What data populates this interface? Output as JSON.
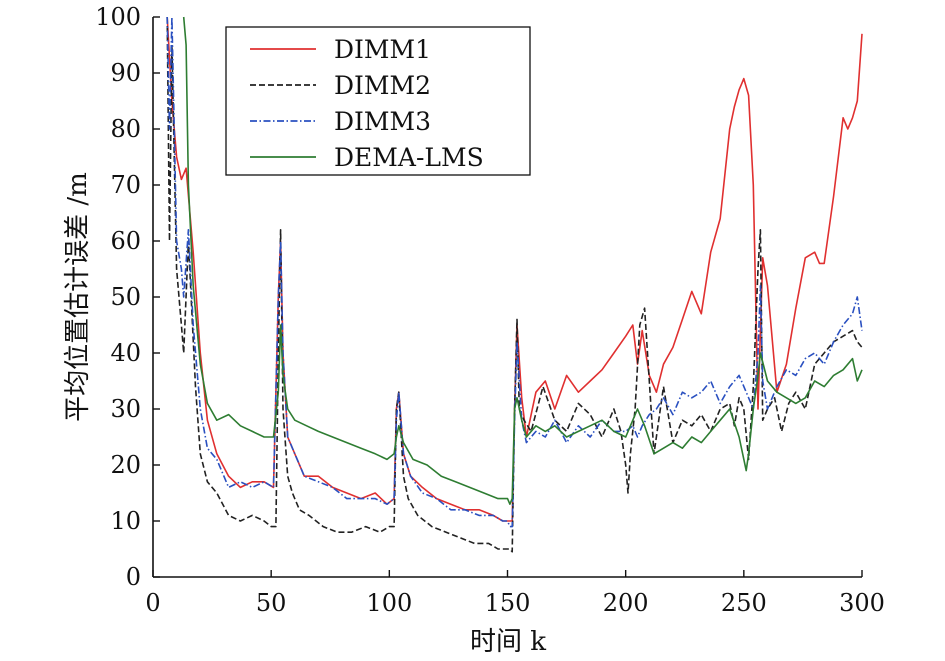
{
  "chart_data": {
    "type": "line",
    "xlabel": "时间 k",
    "ylabel": "平均位置估计误差 /m",
    "xlim": [
      0,
      300
    ],
    "ylim": [
      0,
      100
    ],
    "xticks": [
      "0",
      "50",
      "100",
      "150",
      "200",
      "250",
      "300"
    ],
    "yticks": [
      "0",
      "10",
      "20",
      "30",
      "40",
      "50",
      "60",
      "70",
      "80",
      "90",
      "100"
    ],
    "grid": false,
    "legend_position": "top-left",
    "series": [
      {
        "name": "DIMM1",
        "color": "#e03030",
        "style": "solid",
        "x": [
          6,
          8,
          10,
          12,
          14,
          17,
          20,
          23,
          27,
          32,
          37,
          42,
          47,
          51,
          53,
          54,
          55,
          57,
          60,
          64,
          70,
          76,
          82,
          88,
          94,
          99,
          102,
          103,
          104,
          106,
          109,
          114,
          120,
          126,
          132,
          138,
          144,
          148,
          150,
          151,
          152,
          153,
          154,
          156,
          158,
          162,
          166,
          170,
          175,
          180,
          185,
          190,
          195,
          200,
          203,
          205,
          207,
          210,
          213,
          216,
          220,
          224,
          228,
          232,
          236,
          240,
          244,
          246,
          248,
          249,
          250,
          252,
          254,
          256,
          258,
          260,
          264,
          268,
          272,
          276,
          280,
          282,
          284,
          288,
          292,
          294,
          296,
          298,
          300
        ],
        "y": [
          100,
          85,
          75,
          71,
          73,
          58,
          40,
          28,
          22,
          18,
          16,
          17,
          17,
          16,
          50,
          60,
          40,
          25,
          22,
          18,
          18,
          16,
          15,
          14,
          15,
          13,
          14,
          30,
          33,
          22,
          18,
          16,
          14,
          13,
          12,
          12,
          11,
          10,
          10,
          10,
          10,
          30,
          45,
          32,
          25,
          33,
          35,
          30,
          36,
          33,
          35,
          37,
          40,
          43,
          45,
          38,
          44,
          36,
          33,
          38,
          41,
          46,
          51,
          47,
          58,
          64,
          80,
          84,
          87,
          88,
          89,
          86,
          70,
          30,
          57,
          52,
          33,
          38,
          48,
          57,
          58,
          56,
          56,
          68,
          82,
          80,
          82,
          85,
          97
        ]
      },
      {
        "name": "DIMM2",
        "color": "#222222",
        "style": "dashed",
        "x": [
          6,
          7,
          8,
          10,
          12,
          13,
          15,
          18,
          20,
          23,
          27,
          32,
          37,
          42,
          47,
          50,
          52,
          53,
          54,
          55,
          57,
          59,
          62,
          66,
          72,
          78,
          84,
          90,
          96,
          100,
          102,
          103,
          104,
          106,
          108,
          112,
          118,
          124,
          130,
          136,
          142,
          146,
          148,
          150,
          151,
          152,
          153,
          154,
          155,
          157,
          160,
          165,
          170,
          175,
          180,
          185,
          190,
          195,
          198,
          200,
          201,
          202,
          204,
          206,
          208,
          212,
          216,
          220,
          224,
          228,
          232,
          236,
          240,
          244,
          246,
          248,
          250,
          252,
          254,
          256,
          257,
          258,
          260,
          263,
          266,
          269,
          272,
          276,
          280,
          284,
          288,
          292,
          296,
          298,
          300
        ],
        "y": [
          100,
          60,
          95,
          55,
          45,
          40,
          60,
          34,
          22,
          17,
          15,
          11,
          10,
          11,
          10,
          9,
          9,
          40,
          62,
          30,
          18,
          15,
          12,
          11,
          9,
          8,
          8,
          9,
          8,
          9,
          9,
          30,
          33,
          18,
          14,
          11,
          9,
          8,
          7,
          6,
          6,
          5,
          5,
          5,
          5,
          4.5,
          30,
          46,
          30,
          28,
          26,
          34,
          28,
          26,
          31,
          29,
          25,
          30,
          26,
          20,
          15,
          22,
          30,
          45,
          48,
          22,
          34,
          24,
          28,
          27,
          29,
          26,
          30,
          31,
          27,
          32,
          30,
          21,
          34,
          55,
          62,
          28,
          30,
          32,
          26,
          31,
          33,
          30,
          38,
          40,
          42,
          43,
          44,
          42,
          41
        ]
      },
      {
        "name": "DIMM3",
        "color": "#2a50c0",
        "style": "dashdot",
        "x": [
          6,
          7,
          8,
          10,
          12,
          13,
          15,
          17,
          20,
          23,
          27,
          32,
          37,
          42,
          47,
          51,
          53,
          54,
          55,
          57,
          60,
          64,
          70,
          76,
          82,
          88,
          94,
          99,
          102,
          103,
          104,
          106,
          109,
          114,
          120,
          126,
          132,
          138,
          144,
          148,
          150,
          151,
          152,
          153,
          154,
          156,
          158,
          162,
          166,
          170,
          175,
          180,
          185,
          190,
          195,
          200,
          203,
          205,
          207,
          210,
          213,
          216,
          220,
          224,
          228,
          232,
          236,
          240,
          244,
          248,
          252,
          254,
          256,
          257,
          258,
          260,
          264,
          268,
          272,
          276,
          280,
          284,
          288,
          292,
          296,
          298,
          300
        ],
        "y": [
          100,
          80,
          100,
          60,
          55,
          50,
          62,
          45,
          30,
          23,
          21,
          16,
          17,
          16,
          17,
          16,
          50,
          60,
          40,
          25,
          22,
          18,
          17,
          16,
          14,
          14,
          14,
          13,
          14,
          28,
          33,
          22,
          18,
          15,
          14,
          12,
          12,
          11,
          11,
          10,
          10,
          9,
          9,
          28,
          42,
          28,
          24,
          26,
          25,
          28,
          24,
          27,
          25,
          28,
          26,
          26,
          27,
          25,
          27,
          29,
          30,
          32,
          29,
          33,
          32,
          33,
          35,
          31,
          34,
          36,
          32,
          30,
          40,
          52,
          35,
          30,
          34,
          37,
          36,
          39,
          40,
          38,
          42,
          45,
          47,
          50,
          44
        ]
      },
      {
        "name": "DEMA-LMS",
        "color": "#2e7d32",
        "style": "solid",
        "x": [
          13,
          14,
          15,
          17,
          20,
          23,
          27,
          32,
          37,
          42,
          47,
          51,
          53,
          54,
          55,
          57,
          60,
          65,
          70,
          76,
          82,
          88,
          94,
          99,
          102,
          103,
          104,
          106,
          110,
          116,
          122,
          128,
          134,
          140,
          146,
          150,
          151,
          152,
          153,
          154,
          156,
          158,
          162,
          166,
          170,
          175,
          180,
          185,
          190,
          195,
          200,
          203,
          205,
          208,
          212,
          216,
          220,
          224,
          228,
          232,
          236,
          240,
          244,
          248,
          251,
          252,
          254,
          256,
          257,
          260,
          264,
          268,
          272,
          276,
          280,
          284,
          288,
          292,
          296,
          298,
          300
        ],
        "y": [
          100,
          95,
          70,
          52,
          38,
          31,
          28,
          29,
          27,
          26,
          25,
          25,
          33,
          45,
          36,
          30,
          28,
          27,
          26,
          25,
          24,
          23,
          22,
          21,
          22,
          25,
          27,
          24,
          21,
          20,
          18,
          17,
          16,
          15,
          14,
          14,
          13,
          14,
          30,
          32,
          28,
          25,
          27,
          26,
          27,
          25,
          26,
          27,
          28,
          26,
          25,
          28,
          30,
          27,
          22,
          23,
          24,
          23,
          25,
          24,
          26,
          28,
          30,
          25,
          19,
          22,
          30,
          36,
          40,
          35,
          33,
          32,
          31,
          32,
          35,
          34,
          36,
          37,
          39,
          35,
          37
        ]
      }
    ]
  }
}
